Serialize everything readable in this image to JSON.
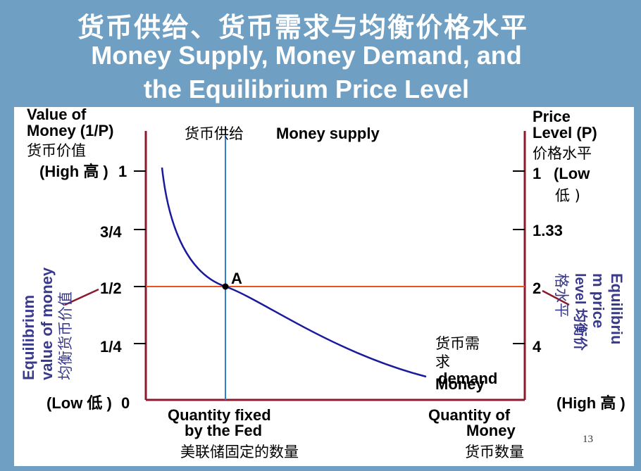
{
  "title": {
    "zh": "货币供给、货币需求与均衡价格水平",
    "en_line1": "Money Supply, Money Demand, and",
    "en_line2": "the Equilibrium Price Level"
  },
  "left_axis": {
    "title_line1": "Value of",
    "title_line2": "Money (1/P)",
    "title_zh": "货币价值",
    "high": "(High 高 )",
    "low": "(Low 低 )",
    "ticks": [
      "1",
      "3/4",
      "1/2",
      "1/4",
      "0"
    ]
  },
  "right_axis": {
    "title_line1": "Price",
    "title_line2": "Level (P)",
    "title_zh": "价格水平",
    "low": "(Low",
    "low_zh": "低 )",
    "high": "(High 高 )",
    "ticks": [
      "1",
      "1.33",
      "2",
      "4"
    ]
  },
  "money_supply": {
    "zh": "货币供给",
    "en": "Money supply"
  },
  "money_demand": {
    "zh_line1": "货币需",
    "zh_line2": "求",
    "en_line1": "Money",
    "en_line2": "demand"
  },
  "point_label": "A",
  "x_axis": {
    "fixed_line1": "Quantity fixed",
    "fixed_line2": "by the Fed",
    "fixed_zh": "美联储固定的数量",
    "qty_line1": "Quantity of",
    "qty_line2": "Money",
    "qty_zh": "货币数量"
  },
  "equilibrium_left": {
    "line1": "Equilibrium",
    "line2": "value of money",
    "zh": "均衡货币价值"
  },
  "equilibrium_right": {
    "line1": "Equilibriu",
    "line2": "m price",
    "line3": "level 均衡价",
    "line4": "格水平"
  },
  "page_number": "13",
  "colors": {
    "axis": "#8b1a2e",
    "demand": "#1a1a9c",
    "supply": "#2f7fd6",
    "equilibrium": "#e8521c"
  }
}
